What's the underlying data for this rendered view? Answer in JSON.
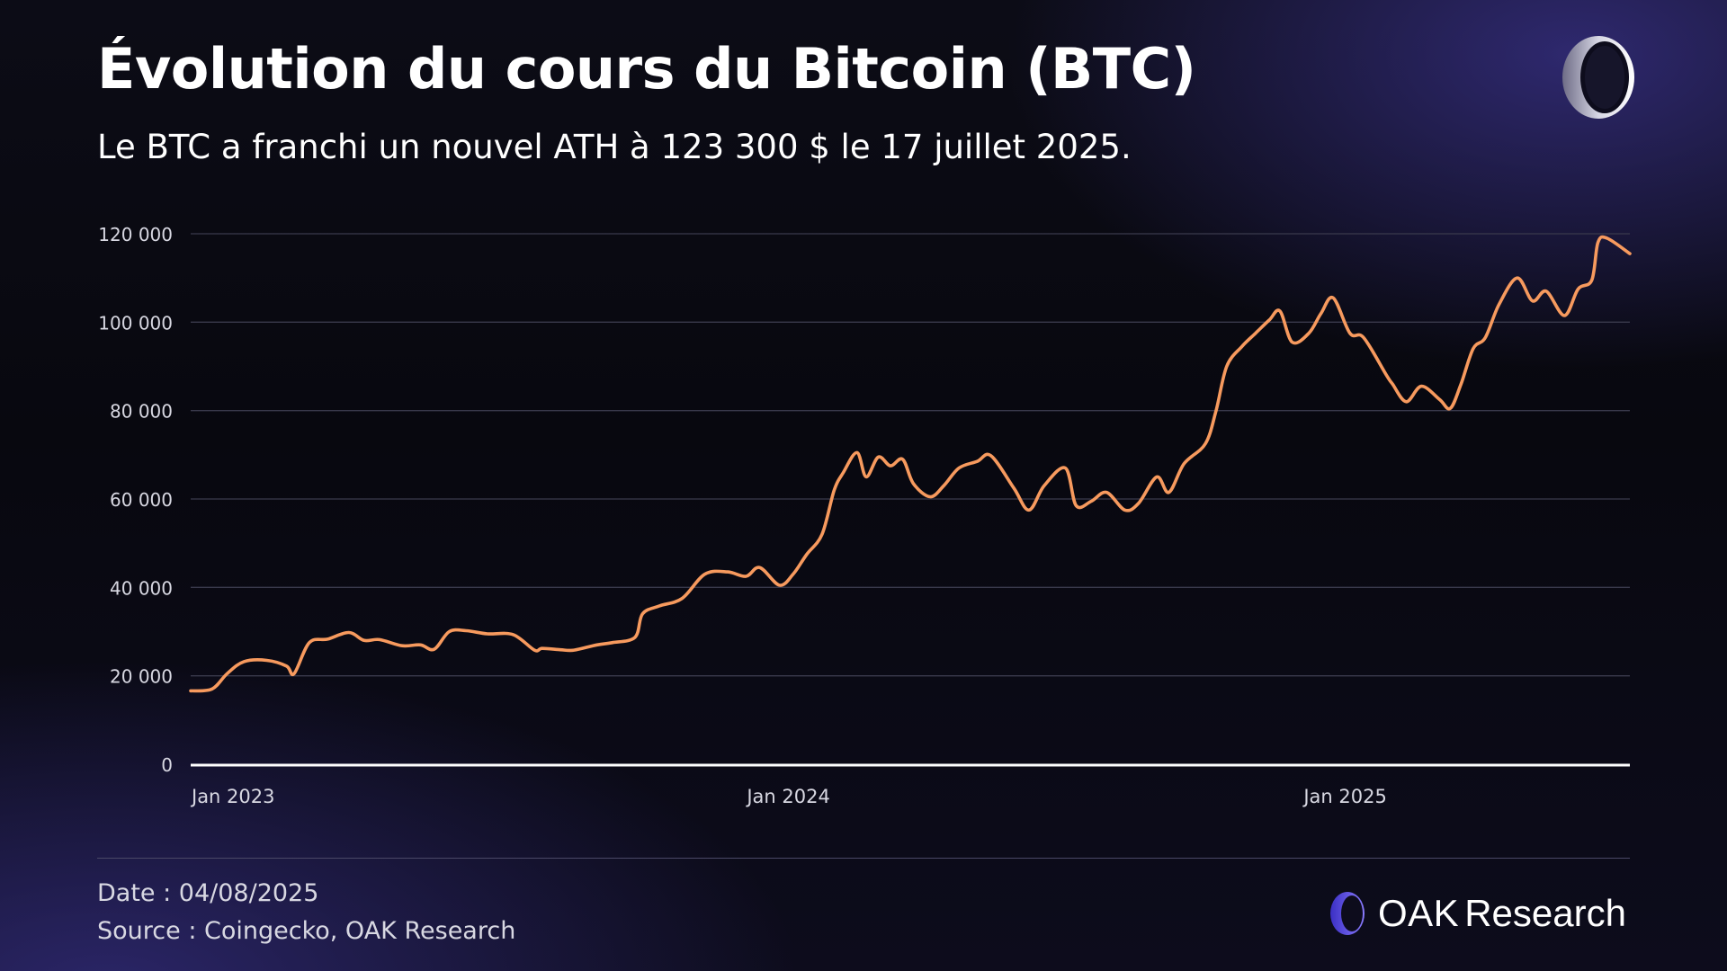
{
  "header": {
    "title": "Évolution du cours du Bitcoin (BTC)",
    "subtitle": "Le BTC a franchi un nouvel ATH à 123 300 $ le 17 juillet 2025."
  },
  "footer": {
    "date": "Date : 04/08/2025",
    "source": "Source : Coingecko, OAK Research",
    "brand_bold": "OAK",
    "brand_light": "Research"
  },
  "colors": {
    "line": "#f79a5e",
    "grid": "#3a3a4c",
    "axis": "#ffffff",
    "tick_text": "#d8d8e2",
    "brand_accent": "#6b5cf0"
  },
  "icons": [
    "oak-research-logo-icon"
  ],
  "chart_data": {
    "type": "line",
    "title": "",
    "xlabel": "",
    "ylabel": "",
    "ylim": [
      0,
      120000
    ],
    "yticks": [
      0,
      20000,
      40000,
      60000,
      80000,
      100000,
      120000
    ],
    "ytick_labels": [
      "0",
      "20 000",
      "40 000",
      "60 000",
      "80 000",
      "100 000",
      "120 000"
    ],
    "xlim": [
      "2023-01-01",
      "2025-08-04"
    ],
    "xticks": [
      "2023-01-01",
      "2024-01-01",
      "2025-01-01"
    ],
    "xtick_labels": [
      "Jan 2023",
      "Jan 2024",
      "Jan 2025"
    ],
    "grid": true,
    "legend": "none",
    "series": [
      {
        "name": "",
        "x": [
          "2023-01-01",
          "2023-01-15",
          "2023-01-25",
          "2023-02-05",
          "2023-02-20",
          "2023-03-05",
          "2023-03-10",
          "2023-03-20",
          "2023-04-01",
          "2023-04-15",
          "2023-04-25",
          "2023-05-05",
          "2023-05-20",
          "2023-06-01",
          "2023-06-10",
          "2023-06-20",
          "2023-07-01",
          "2023-07-15",
          "2023-08-01",
          "2023-08-15",
          "2023-08-20",
          "2023-09-01",
          "2023-09-10",
          "2023-09-25",
          "2023-10-05",
          "2023-10-20",
          "2023-10-25",
          "2023-11-05",
          "2023-11-20",
          "2023-12-05",
          "2023-12-20",
          "2024-01-01",
          "2024-01-10",
          "2024-01-23",
          "2024-02-01",
          "2024-02-10",
          "2024-02-20",
          "2024-02-28",
          "2024-03-05",
          "2024-03-14",
          "2024-03-20",
          "2024-03-28",
          "2024-04-05",
          "2024-04-13",
          "2024-04-20",
          "2024-05-01",
          "2024-05-10",
          "2024-05-20",
          "2024-06-01",
          "2024-06-10",
          "2024-06-25",
          "2024-07-05",
          "2024-07-15",
          "2024-07-29",
          "2024-08-05",
          "2024-08-15",
          "2024-08-25",
          "2024-09-06",
          "2024-09-15",
          "2024-09-27",
          "2024-10-05",
          "2024-10-15",
          "2024-10-29",
          "2024-11-05",
          "2024-11-12",
          "2024-11-22",
          "2024-12-01",
          "2024-12-10",
          "2024-12-17",
          "2024-12-25",
          "2025-01-05",
          "2025-01-13",
          "2025-01-21",
          "2025-02-01",
          "2025-02-10",
          "2025-02-25",
          "2025-03-01",
          "2025-03-10",
          "2025-03-20",
          "2025-04-01",
          "2025-04-08",
          "2025-04-15",
          "2025-04-23",
          "2025-05-01",
          "2025-05-10",
          "2025-05-22",
          "2025-06-01",
          "2025-06-10",
          "2025-06-22",
          "2025-07-01",
          "2025-07-10",
          "2025-07-14",
          "2025-07-20",
          "2025-08-04"
        ],
        "values": [
          16600,
          17000,
          20500,
          23200,
          23500,
          22200,
          20500,
          27500,
          28300,
          29800,
          28000,
          28200,
          26800,
          27000,
          26000,
          30000,
          30200,
          29500,
          29300,
          25800,
          26200,
          25900,
          25800,
          27000,
          27500,
          28700,
          34000,
          35800,
          37500,
          43000,
          43500,
          42500,
          44500,
          40500,
          43000,
          47500,
          52000,
          62000,
          66000,
          70500,
          65000,
          69500,
          67500,
          69000,
          63500,
          60500,
          63000,
          67000,
          68500,
          69800,
          62500,
          57500,
          63000,
          67000,
          58500,
          59500,
          61500,
          57500,
          59000,
          65000,
          61500,
          68000,
          72500,
          80000,
          90000,
          94500,
          97500,
          100500,
          102500,
          95500,
          97500,
          102000,
          105500,
          97500,
          96500,
          88000,
          86000,
          82000,
          85500,
          82500,
          80500,
          86000,
          94000,
          96500,
          104000,
          110000,
          104800,
          107000,
          101500,
          107500,
          109500,
          118000,
          119000,
          115500
        ]
      }
    ]
  }
}
